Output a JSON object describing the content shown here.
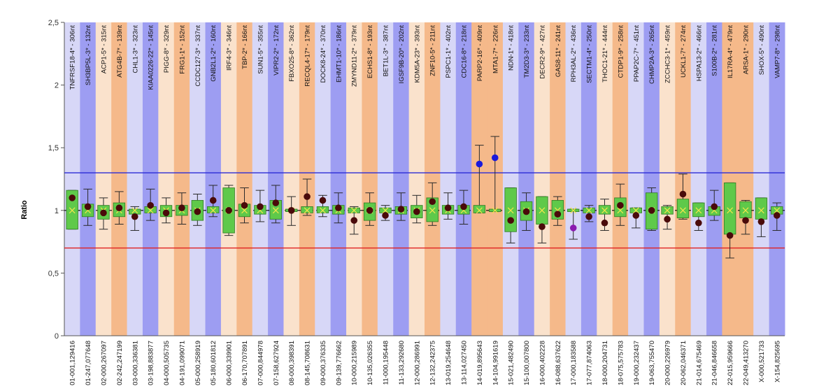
{
  "chart_data": {
    "type": "box",
    "ylabel": "Ratio",
    "ylim": [
      0,
      2.5
    ],
    "yticks": [
      0,
      0.5,
      1,
      1.5,
      2,
      2.5
    ],
    "ytick_labels": [
      "0",
      "0,5",
      "1",
      "1,5",
      "2",
      "2,5"
    ],
    "reference_lines": [
      {
        "y": 1.3,
        "color": "#2b2bd6"
      },
      {
        "y": 1.0,
        "color": "#000000",
        "style": "dashed"
      },
      {
        "y": 0.7,
        "color": "#e02020"
      }
    ],
    "groups": [
      {
        "top": "TNFRSF18-4* - 306nt",
        "bottom": "01-001,129416",
        "band": "#d7d7f7",
        "box": [
          0.85,
          1.16
        ],
        "whisker": [
          0.85,
          1.16
        ],
        "mean": 1.1,
        "dot": "#4a0a0a"
      },
      {
        "top": "SH3BP5L-3* - 132nt",
        "bottom": "01-247,077648",
        "band": "#9d9df2",
        "box": [
          0.95,
          1.05
        ],
        "whisker": [
          0.88,
          1.17
        ],
        "mean": 1.03,
        "dot": "#4a0a0a"
      },
      {
        "top": "ACP1-5* - 315nt",
        "bottom": "02-000,267097",
        "band": "#fae2cc",
        "box": [
          0.93,
          1.04
        ],
        "whisker": [
          0.85,
          1.1
        ],
        "mean": 0.98,
        "dot": "#4a0a0a"
      },
      {
        "top": "ATG4B-7* - 139nt",
        "bottom": "02-242,247199",
        "band": "#f5b98a",
        "box": [
          0.95,
          1.06
        ],
        "whisker": [
          0.89,
          1.15
        ],
        "mean": 1.02,
        "dot": "#4a0a0a"
      },
      {
        "top": "CHL1-3* - 323nt",
        "bottom": "03-000,336381",
        "band": "#d7d7f7",
        "box": [
          0.97,
          1.01
        ],
        "whisker": [
          0.84,
          1.03
        ],
        "mean": 0.95,
        "dot": "#4a0a0a"
      },
      {
        "top": "KIAA0226-22* - 145nt",
        "bottom": "03-198,883877",
        "band": "#9d9df2",
        "box": [
          0.98,
          1.03
        ],
        "whisker": [
          0.92,
          1.17
        ],
        "mean": 1.04,
        "dot": "#4a0a0a"
      },
      {
        "top": "PIGG-8* - 329nt",
        "bottom": "04-000,505735",
        "band": "#fae2cc",
        "box": [
          0.95,
          1.04
        ],
        "whisker": [
          0.9,
          1.1
        ],
        "mean": 0.98,
        "dot": "#4a0a0a"
      },
      {
        "top": "FRG1-1* - 152nt",
        "bottom": "04-191,099071",
        "band": "#f5b98a",
        "box": [
          0.96,
          1.04
        ],
        "whisker": [
          0.89,
          1.14
        ],
        "mean": 1.02,
        "dot": "#4a0a0a"
      },
      {
        "top": "CCDC127-3* - 337nt",
        "bottom": "05-000,258919",
        "band": "#d7d7f7",
        "box": [
          0.92,
          1.08
        ],
        "whisker": [
          0.88,
          1.13
        ],
        "mean": 0.99,
        "dot": "#4a0a0a"
      },
      {
        "top": "GNB2L1-2* - 160nt",
        "bottom": "05-180,601812",
        "band": "#9d9df2",
        "box": [
          0.98,
          1.03
        ],
        "whisker": [
          0.95,
          1.2
        ],
        "mean": 1.08,
        "dot": "#4a0a0a"
      },
      {
        "top": "IRF4-3* - 346nt",
        "bottom": "06-000,339901",
        "band": "#fae2cc",
        "box": [
          0.82,
          1.18
        ],
        "whisker": [
          0.8,
          1.2
        ],
        "mean": 1.0,
        "dot": "#4a0a0a"
      },
      {
        "top": "TBP-2* - 166nt",
        "bottom": "06-170,707891",
        "band": "#f5b98a",
        "box": [
          0.95,
          1.05
        ],
        "whisker": [
          0.9,
          1.18
        ],
        "mean": 1.04,
        "dot": "#4a0a0a"
      },
      {
        "top": "SUN1-5* - 355nt",
        "bottom": "07-000,844978",
        "band": "#d7d7f7",
        "box": [
          0.97,
          1.04
        ],
        "whisker": [
          0.91,
          1.16
        ],
        "mean": 1.03,
        "dot": "#4a0a0a"
      },
      {
        "top": "VIPR2-2* - 172nt",
        "bottom": "07-158,627924",
        "band": "#9d9df2",
        "box": [
          0.93,
          1.08
        ],
        "whisker": [
          0.9,
          1.2
        ],
        "mean": 1.06,
        "dot": "#4a0a0a"
      },
      {
        "top": "FBXO25-8* - 362nt",
        "bottom": "08-000,398391",
        "band": "#fae2cc",
        "box": [
          0.99,
          1.01
        ],
        "whisker": [
          0.88,
          1.11
        ],
        "mean": 1.0,
        "dot": "#4a0a0a"
      },
      {
        "top": "RECQL4-17* - 179nt",
        "bottom": "08-145,708631",
        "band": "#f5b98a",
        "box": [
          0.98,
          1.03
        ],
        "whisker": [
          0.96,
          1.25
        ],
        "mean": 1.11,
        "dot": "#4a0a0a"
      },
      {
        "top": "DOCK8-24* - 370nt",
        "bottom": "09-000,376335",
        "band": "#d7d7f7",
        "box": [
          0.98,
          1.03
        ],
        "whisker": [
          0.95,
          1.12
        ],
        "mean": 1.08,
        "dot": "#4a0a0a"
      },
      {
        "top": "EHMT1-10* - 186nt",
        "bottom": "09-139,776662",
        "band": "#9d9df2",
        "box": [
          0.97,
          1.04
        ],
        "whisker": [
          0.9,
          1.14
        ],
        "mean": 1.02,
        "dot": "#4a0a0a"
      },
      {
        "top": "ZMYND11-2* - 379nt",
        "bottom": "10-000,215989",
        "band": "#fae2cc",
        "box": [
          0.98,
          1.02
        ],
        "whisker": [
          0.81,
          1.03
        ],
        "mean": 0.92,
        "dot": "#4a0a0a"
      },
      {
        "top": "ECHS1-8* - 193nt",
        "bottom": "10-135,026355",
        "band": "#f5b98a",
        "box": [
          0.92,
          1.06
        ],
        "whisker": [
          0.88,
          1.14
        ],
        "mean": 1.0,
        "dot": "#4a0a0a"
      },
      {
        "top": "BET1L-3* - 387nt",
        "bottom": "11-000,195448",
        "band": "#d7d7f7",
        "box": [
          0.98,
          1.02
        ],
        "whisker": [
          0.92,
          1.04
        ],
        "mean": 0.96,
        "dot": "#4a0a0a"
      },
      {
        "top": "IGSF9B-20* - 202nt",
        "bottom": "11-133,292680",
        "band": "#9d9df2",
        "box": [
          0.97,
          1.03
        ],
        "whisker": [
          0.92,
          1.14
        ],
        "mean": 1.01,
        "dot": "#4a0a0a"
      },
      {
        "top": "KDM5A-23* - 393nt",
        "bottom": "12-000,286991",
        "band": "#fae2cc",
        "box": [
          0.94,
          1.04
        ],
        "whisker": [
          0.9,
          1.12
        ],
        "mean": 0.99,
        "dot": "#4a0a0a"
      },
      {
        "top": "ZNF10-5* - 211nt",
        "bottom": "12-132,242375",
        "band": "#f5b98a",
        "box": [
          0.91,
          1.1
        ],
        "whisker": [
          0.88,
          1.22
        ],
        "mean": 1.07,
        "dot": "#4a0a0a"
      },
      {
        "top": "PSPC1-1* - 402nt",
        "bottom": "13-019,254648",
        "band": "#d7d7f7",
        "box": [
          0.97,
          1.04
        ],
        "whisker": [
          0.93,
          1.14
        ],
        "mean": 1.02,
        "dot": "#4a0a0a"
      },
      {
        "top": "CDC16-8* - 218nt",
        "bottom": "13-114,027450",
        "band": "#9d9df2",
        "box": [
          0.97,
          1.04
        ],
        "whisker": [
          0.89,
          1.16
        ],
        "mean": 1.03,
        "dot": "#4a0a0a"
      },
      {
        "top": "PARP2-16* - 409nt",
        "bottom": "14-019,895643",
        "band": "#f5b98a",
        "box": [
          0.98,
          1.04
        ],
        "whisker": [
          0.98,
          1.52
        ],
        "mean": 1.37,
        "dot": "#1a1adb"
      },
      {
        "top": "MTA1-7* - 226nt",
        "bottom": "14-104,991619",
        "band": "#f5b98a",
        "box": [
          0.99,
          1.01
        ],
        "whisker": [
          0.99,
          1.59
        ],
        "mean": 1.42,
        "dot": "#1a1adb"
      },
      {
        "top": "NDN-1* - 418nt",
        "bottom": "15-021,482490",
        "band": "#d7d7f7",
        "box": [
          0.83,
          1.18
        ],
        "whisker": [
          0.74,
          1.18
        ],
        "mean": 0.92,
        "dot": "#4a0a0a"
      },
      {
        "top": "TM2D3-3* - 233nt",
        "bottom": "15-100,007800",
        "band": "#9d9df2",
        "box": [
          0.92,
          1.07
        ],
        "whisker": [
          0.84,
          1.14
        ],
        "mean": 0.99,
        "dot": "#4a0a0a"
      },
      {
        "top": "DECR2-9* - 427nt",
        "bottom": "16-000,402228",
        "band": "#fae2cc",
        "box": [
          0.89,
          1.11
        ],
        "whisker": [
          0.74,
          1.11
        ],
        "mean": 0.87,
        "dot": "#4a0a0a"
      },
      {
        "top": "GAS8-11* - 241nt",
        "bottom": "16-088,637622",
        "band": "#f5b98a",
        "box": [
          0.93,
          1.08
        ],
        "whisker": [
          0.88,
          1.11
        ],
        "mean": 0.97,
        "dot": "#4a0a0a"
      },
      {
        "top": "RPH3AL-2* - 436nt",
        "bottom": "17-000,183588",
        "band": "#d7d7f7",
        "box": [
          0.99,
          1.01
        ],
        "whisker": [
          0.77,
          1.01
        ],
        "mean": 0.86,
        "dot": "#8a1ab0"
      },
      {
        "top": "SECTM1-4* - 250nt",
        "bottom": "17-077,874063",
        "band": "#9d9df2",
        "box": [
          0.98,
          1.02
        ],
        "whisker": [
          0.91,
          1.04
        ],
        "mean": 0.95,
        "dot": "#4a0a0a"
      },
      {
        "top": "THOC1-21* - 444nt",
        "bottom": "18-000,204731",
        "band": "#fae2cc",
        "box": [
          0.97,
          1.04
        ],
        "whisker": [
          0.84,
          1.09
        ],
        "mean": 0.9,
        "dot": "#4a0a0a"
      },
      {
        "top": "CTDP1-9* - 258nt",
        "bottom": "18-075,575783",
        "band": "#f5b98a",
        "box": [
          0.95,
          1.1
        ],
        "whisker": [
          0.88,
          1.21
        ],
        "mean": 1.04,
        "dot": "#4a0a0a"
      },
      {
        "top": "PPAP2C-7* - 451nt",
        "bottom": "19-000,232437",
        "band": "#d7d7f7",
        "box": [
          0.98,
          1.02
        ],
        "whisker": [
          0.86,
          1.02
        ],
        "mean": 0.96,
        "dot": "#4a0a0a"
      },
      {
        "top": "CHMP2A-3* - 265nt",
        "bottom": "19-063,755470",
        "band": "#9d9df2",
        "box": [
          0.85,
          1.14
        ],
        "whisker": [
          0.84,
          1.18
        ],
        "mean": 1.0,
        "dot": "#4a0a0a"
      },
      {
        "top": "ZCCHC3-1* - 459nt",
        "bottom": "20-000,226979",
        "band": "#fae2cc",
        "box": [
          0.97,
          1.03
        ],
        "whisker": [
          0.85,
          1.04
        ],
        "mean": 0.93,
        "dot": "#4a0a0a"
      },
      {
        "top": "UCKL1-7* - 274nt",
        "bottom": "20-062,046371",
        "band": "#f5b98a",
        "box": [
          0.94,
          1.09
        ],
        "whisker": [
          0.93,
          1.29
        ],
        "mean": 1.13,
        "dot": "#4a0a0a"
      },
      {
        "top": "HSPA13-2* - 466nt",
        "bottom": "21-014,675469",
        "band": "#d7d7f7",
        "box": [
          0.95,
          1.06
        ],
        "whisker": [
          0.84,
          1.06
        ],
        "mean": 0.9,
        "dot": "#4a0a0a"
      },
      {
        "top": "S100B-2* - 281nt",
        "bottom": "21-046,846658",
        "band": "#9d9df2",
        "box": [
          0.96,
          1.03
        ],
        "whisker": [
          0.92,
          1.16
        ],
        "mean": 1.03,
        "dot": "#4a0a0a"
      },
      {
        "top": "IL17RA-4* - 479nt",
        "bottom": "22-015,959666",
        "band": "#f5b98a",
        "box": [
          0.81,
          1.22
        ],
        "whisker": [
          0.62,
          1.22
        ],
        "mean": 0.8,
        "dot": "#4a0a0a"
      },
      {
        "top": "ARSA-1* - 290nt",
        "bottom": "22-049,413270",
        "band": "#f5b98a",
        "box": [
          0.94,
          1.07
        ],
        "whisker": [
          0.81,
          1.08
        ],
        "mean": 0.92,
        "dot": "#4a0a0a"
      },
      {
        "top": "SHOX-5* - 490nt",
        "bottom": "X-000,521733",
        "band": "#d7d7f7",
        "box": [
          0.93,
          1.1
        ],
        "whisker": [
          0.79,
          1.1
        ],
        "mean": 0.91,
        "dot": "#4a0a0a"
      },
      {
        "top": "VAMP7-8* - 298nt",
        "bottom": "X-154,825695",
        "band": "#9d9df2",
        "box": [
          0.97,
          1.03
        ],
        "whisker": [
          0.84,
          1.06
        ],
        "mean": 0.96,
        "dot": "#4a0a0a"
      }
    ]
  }
}
